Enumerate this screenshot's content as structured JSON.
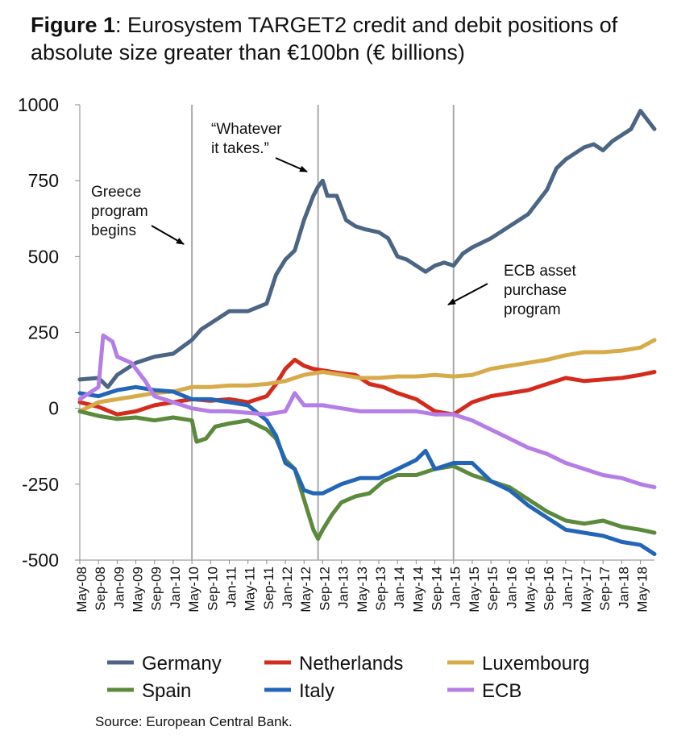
{
  "title": {
    "bold": "Figure 1",
    "rest": ": Eurosystem TARGET2 credit and debit positions of absolute size greater than €100bn (€ billions)"
  },
  "source": "Source: European Central Bank.",
  "chart_data": {
    "type": "line",
    "ylim": [
      -500,
      1000
    ],
    "yticks": [
      1000,
      750,
      500,
      250,
      0,
      -250,
      -500
    ],
    "x_start": "May-08",
    "x_end": "Aug-18",
    "xticks": [
      "May-08",
      "Sep-08",
      "Jan-09",
      "May-09",
      "Sep-09",
      "Jan-10",
      "May-10",
      "Sep-10",
      "Jan-11",
      "May-11",
      "Sep-11",
      "Jan-12",
      "May-12",
      "Sep-12",
      "Jan-13",
      "May-13",
      "Sep-13",
      "Jan-14",
      "May-14",
      "Sep-14",
      "Jan-15",
      "May-15",
      "Sep-15",
      "Jan-16",
      "May-16",
      "Sep-16",
      "Jan-17",
      "May-17",
      "Sep-17",
      "Jan-18",
      "May-18"
    ],
    "events": [
      {
        "x": "May-10",
        "label": "Greece program begins",
        "lines": [
          "Greece",
          "program",
          "begins"
        ]
      },
      {
        "x": "Aug-12",
        "label": "“Whatever it takes.”",
        "lines": [
          "“Whatever",
          "it takes.”"
        ]
      },
      {
        "x": "Jan-15",
        "label": "ECB asset purchase program",
        "lines": [
          "ECB asset",
          "purchase",
          "program"
        ]
      }
    ],
    "series": [
      {
        "name": "Germany",
        "color": "#4c6584",
        "points": [
          [
            "May-08",
            95
          ],
          [
            "Sep-08",
            100
          ],
          [
            "Nov-08",
            70
          ],
          [
            "Jan-09",
            110
          ],
          [
            "May-09",
            150
          ],
          [
            "Sep-09",
            170
          ],
          [
            "Jan-10",
            180
          ],
          [
            "May-10",
            225
          ],
          [
            "Jul-10",
            260
          ],
          [
            "Sep-10",
            280
          ],
          [
            "Jan-11",
            320
          ],
          [
            "May-11",
            320
          ],
          [
            "Sep-11",
            345
          ],
          [
            "Nov-11",
            440
          ],
          [
            "Jan-12",
            490
          ],
          [
            "Mar-12",
            520
          ],
          [
            "May-12",
            620
          ],
          [
            "Jul-12",
            700
          ],
          [
            "Aug-12",
            730
          ],
          [
            "Sep-12",
            750
          ],
          [
            "Oct-12",
            700
          ],
          [
            "Dec-12",
            700
          ],
          [
            "Feb-13",
            620
          ],
          [
            "Apr-13",
            600
          ],
          [
            "Jun-13",
            590
          ],
          [
            "Sep-13",
            580
          ],
          [
            "Nov-13",
            560
          ],
          [
            "Jan-14",
            500
          ],
          [
            "Mar-14",
            490
          ],
          [
            "May-14",
            470
          ],
          [
            "Jul-14",
            450
          ],
          [
            "Sep-14",
            470
          ],
          [
            "Nov-14",
            480
          ],
          [
            "Jan-15",
            470
          ],
          [
            "Mar-15",
            510
          ],
          [
            "May-15",
            530
          ],
          [
            "Sep-15",
            560
          ],
          [
            "Jan-16",
            600
          ],
          [
            "May-16",
            640
          ],
          [
            "Sep-16",
            720
          ],
          [
            "Nov-16",
            790
          ],
          [
            "Jan-17",
            820
          ],
          [
            "May-17",
            860
          ],
          [
            "Jul-17",
            870
          ],
          [
            "Sep-17",
            850
          ],
          [
            "Nov-17",
            880
          ],
          [
            "Jan-18",
            900
          ],
          [
            "Mar-18",
            920
          ],
          [
            "May-18",
            980
          ],
          [
            "Aug-18",
            920
          ]
        ]
      },
      {
        "name": "Netherlands",
        "color": "#d42b1e",
        "points": [
          [
            "May-08",
            20
          ],
          [
            "Sep-08",
            5
          ],
          [
            "Jan-09",
            -20
          ],
          [
            "May-09",
            -10
          ],
          [
            "Sep-09",
            10
          ],
          [
            "Jan-10",
            20
          ],
          [
            "May-10",
            30
          ],
          [
            "Sep-10",
            25
          ],
          [
            "Jan-11",
            30
          ],
          [
            "May-11",
            20
          ],
          [
            "Sep-11",
            40
          ],
          [
            "Nov-11",
            80
          ],
          [
            "Jan-12",
            130
          ],
          [
            "Mar-12",
            160
          ],
          [
            "May-12",
            140
          ],
          [
            "Jul-12",
            130
          ],
          [
            "Sep-12",
            125
          ],
          [
            "Jan-13",
            115
          ],
          [
            "Apr-13",
            110
          ],
          [
            "Jul-13",
            80
          ],
          [
            "Oct-13",
            70
          ],
          [
            "Jan-14",
            50
          ],
          [
            "May-14",
            30
          ],
          [
            "Sep-14",
            -10
          ],
          [
            "Jan-15",
            -20
          ],
          [
            "Mar-15",
            0
          ],
          [
            "May-15",
            20
          ],
          [
            "Sep-15",
            40
          ],
          [
            "Jan-16",
            50
          ],
          [
            "May-16",
            60
          ],
          [
            "Sep-16",
            80
          ],
          [
            "Jan-17",
            100
          ],
          [
            "May-17",
            90
          ],
          [
            "Sep-17",
            95
          ],
          [
            "Jan-18",
            100
          ],
          [
            "May-18",
            110
          ],
          [
            "Aug-18",
            120
          ]
        ]
      },
      {
        "name": "Luxembourg",
        "color": "#d7aa4a",
        "points": [
          [
            "May-08",
            -10
          ],
          [
            "Sep-08",
            20
          ],
          [
            "Jan-09",
            30
          ],
          [
            "May-09",
            40
          ],
          [
            "Sep-09",
            50
          ],
          [
            "Jan-10",
            55
          ],
          [
            "May-10",
            70
          ],
          [
            "Sep-10",
            70
          ],
          [
            "Jan-11",
            75
          ],
          [
            "May-11",
            75
          ],
          [
            "Sep-11",
            80
          ],
          [
            "Jan-12",
            90
          ],
          [
            "May-12",
            110
          ],
          [
            "Sep-12",
            120
          ],
          [
            "Jan-13",
            110
          ],
          [
            "May-13",
            100
          ],
          [
            "Sep-13",
            100
          ],
          [
            "Jan-14",
            105
          ],
          [
            "May-14",
            105
          ],
          [
            "Sep-14",
            110
          ],
          [
            "Jan-15",
            105
          ],
          [
            "May-15",
            110
          ],
          [
            "Sep-15",
            130
          ],
          [
            "Jan-16",
            140
          ],
          [
            "May-16",
            150
          ],
          [
            "Sep-16",
            160
          ],
          [
            "Jan-17",
            175
          ],
          [
            "May-17",
            185
          ],
          [
            "Sep-17",
            185
          ],
          [
            "Jan-18",
            190
          ],
          [
            "May-18",
            200
          ],
          [
            "Aug-18",
            225
          ]
        ]
      },
      {
        "name": "Spain",
        "color": "#5b8a3c",
        "points": [
          [
            "May-08",
            -10
          ],
          [
            "Sep-08",
            -25
          ],
          [
            "Jan-09",
            -35
          ],
          [
            "May-09",
            -30
          ],
          [
            "Sep-09",
            -40
          ],
          [
            "Jan-10",
            -30
          ],
          [
            "May-10",
            -40
          ],
          [
            "Jun-10",
            -110
          ],
          [
            "Aug-10",
            -100
          ],
          [
            "Oct-10",
            -60
          ],
          [
            "Jan-11",
            -50
          ],
          [
            "May-11",
            -40
          ],
          [
            "Sep-11",
            -70
          ],
          [
            "Nov-11",
            -100
          ],
          [
            "Jan-12",
            -170
          ],
          [
            "Mar-12",
            -200
          ],
          [
            "May-12",
            -300
          ],
          [
            "Jul-12",
            -400
          ],
          [
            "Aug-12",
            -430
          ],
          [
            "Sep-12",
            -400
          ],
          [
            "Nov-12",
            -350
          ],
          [
            "Jan-13",
            -310
          ],
          [
            "Apr-13",
            -290
          ],
          [
            "Jul-13",
            -280
          ],
          [
            "Oct-13",
            -240
          ],
          [
            "Jan-14",
            -220
          ],
          [
            "May-14",
            -220
          ],
          [
            "Sep-14",
            -200
          ],
          [
            "Jan-15",
            -190
          ],
          [
            "May-15",
            -220
          ],
          [
            "Sep-15",
            -240
          ],
          [
            "Jan-16",
            -260
          ],
          [
            "May-16",
            -300
          ],
          [
            "Sep-16",
            -340
          ],
          [
            "Jan-17",
            -370
          ],
          [
            "May-17",
            -380
          ],
          [
            "Sep-17",
            -370
          ],
          [
            "Jan-18",
            -390
          ],
          [
            "May-18",
            -400
          ],
          [
            "Aug-18",
            -410
          ]
        ]
      },
      {
        "name": "Italy",
        "color": "#2366b8",
        "points": [
          [
            "May-08",
            50
          ],
          [
            "Sep-08",
            40
          ],
          [
            "Jan-09",
            60
          ],
          [
            "May-09",
            70
          ],
          [
            "Sep-09",
            60
          ],
          [
            "Jan-10",
            55
          ],
          [
            "May-10",
            30
          ],
          [
            "Sep-10",
            30
          ],
          [
            "Jan-11",
            20
          ],
          [
            "May-11",
            10
          ],
          [
            "Sep-11",
            -40
          ],
          [
            "Nov-11",
            -90
          ],
          [
            "Jan-12",
            -180
          ],
          [
            "Mar-12",
            -200
          ],
          [
            "May-12",
            -270
          ],
          [
            "Jul-12",
            -280
          ],
          [
            "Sep-12",
            -280
          ],
          [
            "Jan-13",
            -250
          ],
          [
            "May-13",
            -230
          ],
          [
            "Sep-13",
            -230
          ],
          [
            "Jan-14",
            -200
          ],
          [
            "May-14",
            -170
          ],
          [
            "Jul-14",
            -140
          ],
          [
            "Sep-14",
            -200
          ],
          [
            "Jan-15",
            -180
          ],
          [
            "May-15",
            -180
          ],
          [
            "Sep-15",
            -240
          ],
          [
            "Jan-16",
            -270
          ],
          [
            "May-16",
            -320
          ],
          [
            "Sep-16",
            -360
          ],
          [
            "Jan-17",
            -400
          ],
          [
            "May-17",
            -410
          ],
          [
            "Sep-17",
            -420
          ],
          [
            "Jan-18",
            -440
          ],
          [
            "May-18",
            -450
          ],
          [
            "Aug-18",
            -480
          ]
        ]
      },
      {
        "name": "ECB",
        "color": "#b57ee6",
        "points": [
          [
            "May-08",
            30
          ],
          [
            "Sep-08",
            70
          ],
          [
            "Oct-08",
            240
          ],
          [
            "Dec-08",
            220
          ],
          [
            "Jan-09",
            170
          ],
          [
            "Apr-09",
            150
          ],
          [
            "Jul-09",
            90
          ],
          [
            "Sep-09",
            40
          ],
          [
            "Jan-10",
            20
          ],
          [
            "May-10",
            0
          ],
          [
            "Sep-10",
            -10
          ],
          [
            "Jan-11",
            -10
          ],
          [
            "May-11",
            -15
          ],
          [
            "Sep-11",
            -20
          ],
          [
            "Jan-12",
            -10
          ],
          [
            "Mar-12",
            50
          ],
          [
            "May-12",
            10
          ],
          [
            "Sep-12",
            10
          ],
          [
            "Jan-13",
            0
          ],
          [
            "May-13",
            -10
          ],
          [
            "Sep-13",
            -10
          ],
          [
            "Jan-14",
            -10
          ],
          [
            "May-14",
            -10
          ],
          [
            "Sep-14",
            -20
          ],
          [
            "Jan-15",
            -20
          ],
          [
            "May-15",
            -40
          ],
          [
            "Sep-15",
            -70
          ],
          [
            "Jan-16",
            -100
          ],
          [
            "May-16",
            -130
          ],
          [
            "Sep-16",
            -150
          ],
          [
            "Jan-17",
            -180
          ],
          [
            "May-17",
            -200
          ],
          [
            "Sep-17",
            -220
          ],
          [
            "Jan-18",
            -230
          ],
          [
            "May-18",
            -250
          ],
          [
            "Aug-18",
            -260
          ]
        ]
      }
    ]
  }
}
